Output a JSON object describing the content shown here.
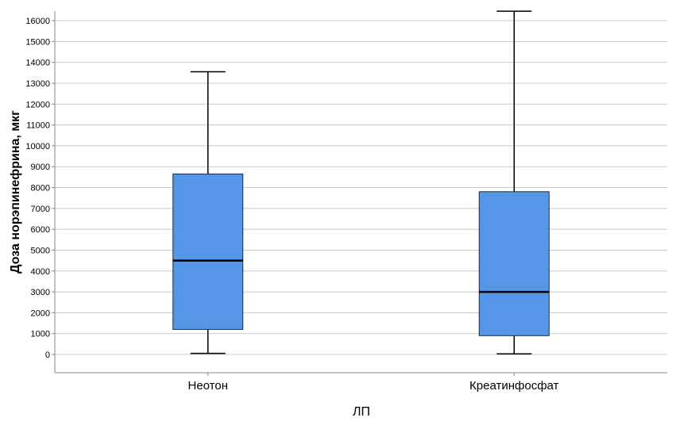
{
  "chart_data": {
    "type": "boxplot",
    "xlabel": "ЛП",
    "ylabel": "Доза норэпинефрина, мкг",
    "ylim": [
      -800,
      16500
    ],
    "yticks": [
      0,
      1000,
      2000,
      3000,
      4000,
      5000,
      6000,
      7000,
      8000,
      9000,
      10000,
      11000,
      12000,
      13000,
      14000,
      15000,
      16000
    ],
    "grid": true,
    "box_color": "#5597e6",
    "categories": [
      "Неотон",
      "Креатинфосфат"
    ],
    "boxes": [
      {
        "category": "Неотон",
        "min": 50,
        "q1": 1200,
        "median": 4500,
        "q3": 8650,
        "max": 13550
      },
      {
        "category": "Креатинфосфат",
        "min": 30,
        "q1": 900,
        "median": 3000,
        "q3": 7800,
        "max": 16450
      }
    ]
  }
}
